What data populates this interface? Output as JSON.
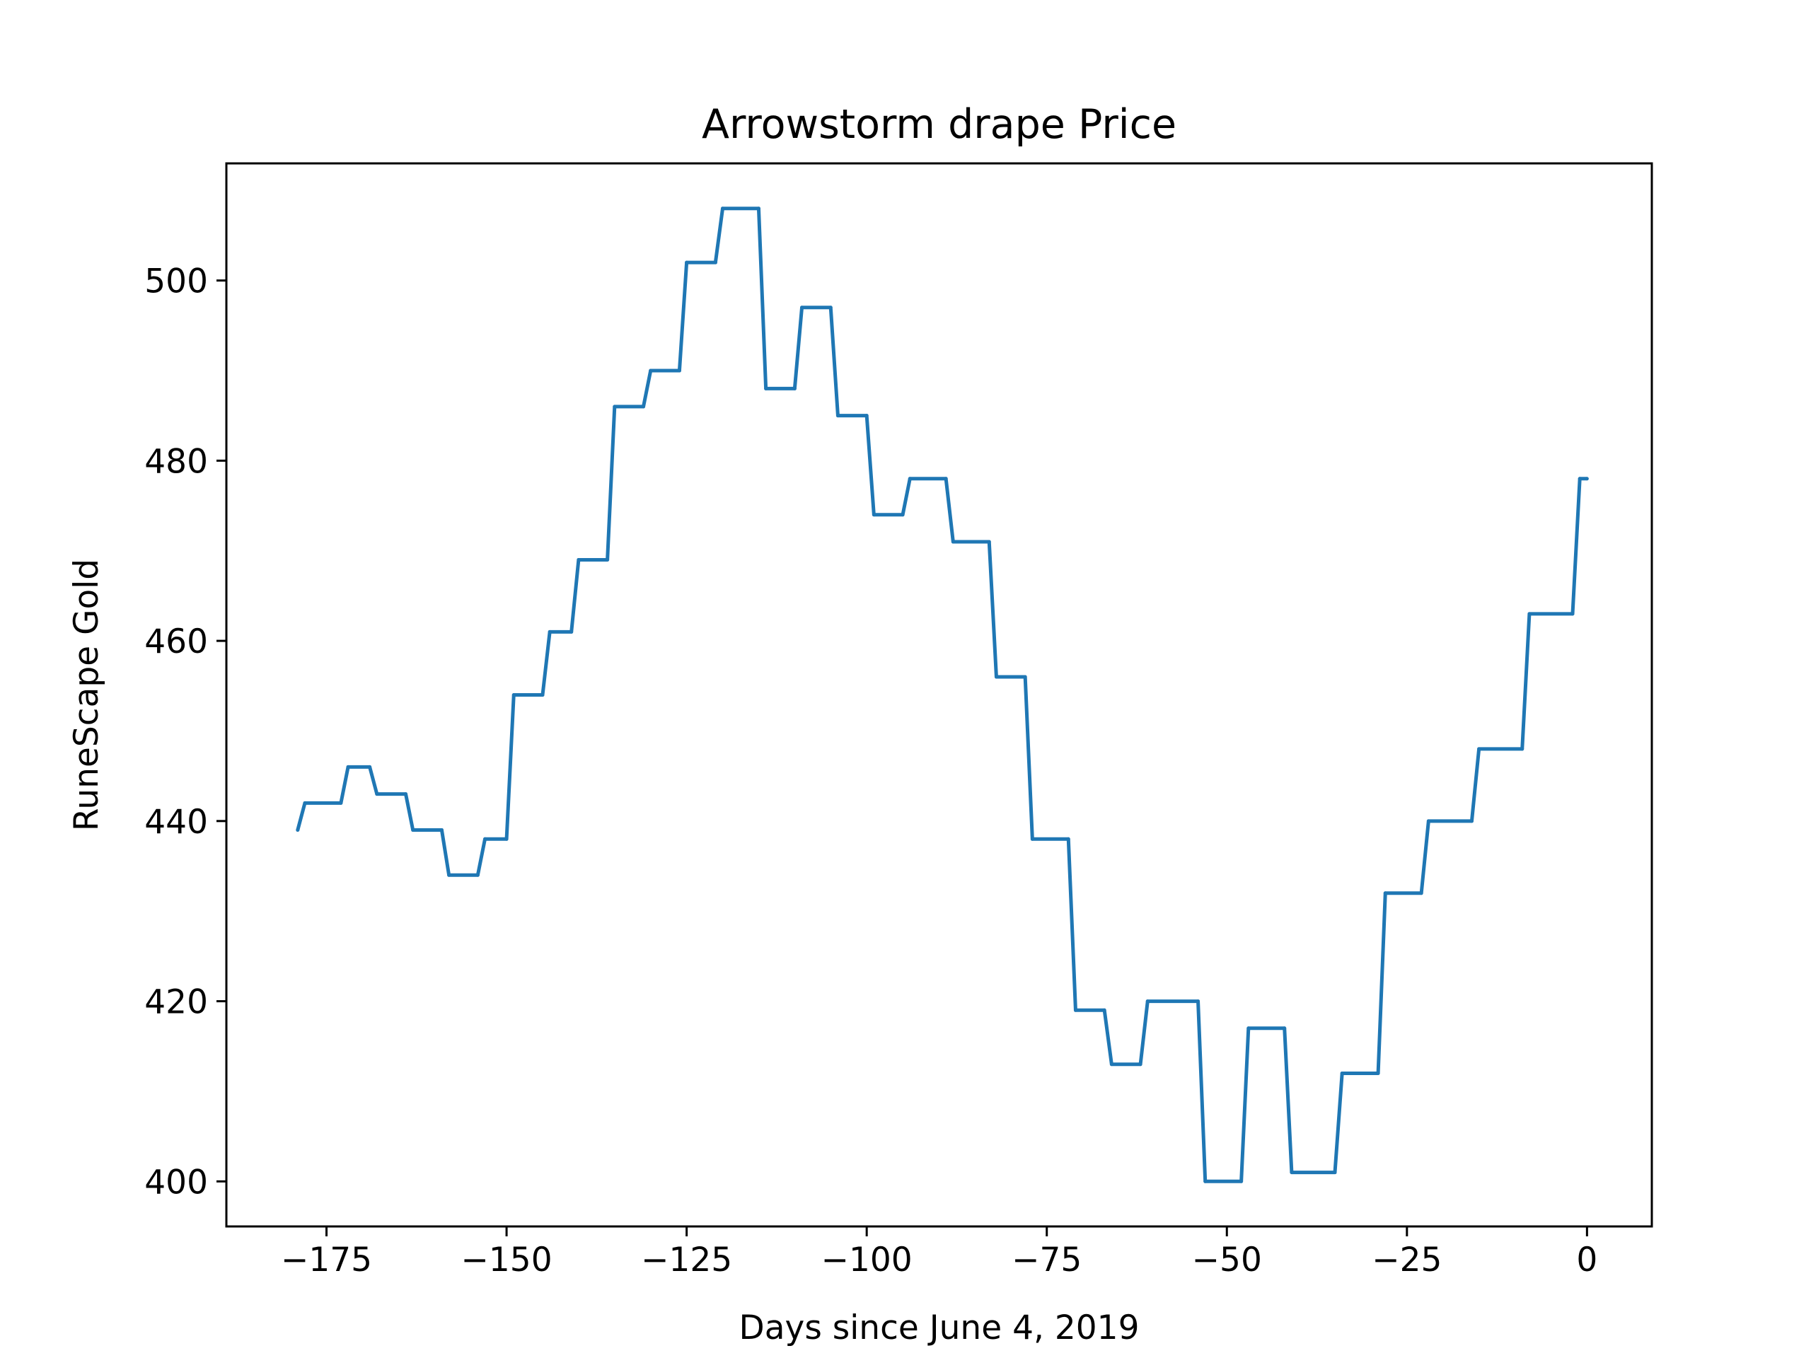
{
  "chart_data": {
    "type": "line",
    "title": "Arrowstorm drape Price",
    "xlabel": "Days since June 4, 2019",
    "ylabel": "RuneScape Gold",
    "xlim": [
      -188.9,
      9
    ],
    "ylim": [
      395,
      513
    ],
    "x_ticks": [
      -175,
      -150,
      -125,
      -100,
      -75,
      -50,
      -25,
      0
    ],
    "x_tick_labels": [
      "−175",
      "−150",
      "−125",
      "−100",
      "−75",
      "−50",
      "−25",
      "0"
    ],
    "y_ticks": [
      400,
      420,
      440,
      460,
      480,
      500
    ],
    "y_tick_labels": [
      "400",
      "420",
      "440",
      "460",
      "480",
      "500"
    ],
    "grid": false,
    "series": [
      {
        "color": "#1f77b4",
        "x": [
          -179,
          -178,
          -173,
          -172,
          -169,
          -168,
          -164,
          -163,
          -159,
          -158,
          -154,
          -153,
          -150,
          -149,
          -145,
          -144,
          -141,
          -140,
          -136,
          -135,
          -131,
          -130,
          -126,
          -125,
          -121,
          -120,
          -115,
          -114,
          -110,
          -109,
          -105,
          -104,
          -100,
          -99,
          -95,
          -94,
          -89,
          -88,
          -83,
          -82,
          -78,
          -77,
          -72,
          -71,
          -67,
          -66,
          -62,
          -61,
          -54,
          -53,
          -48,
          -47,
          -42,
          -41,
          -35,
          -34,
          -29,
          -28,
          -23,
          -22,
          -16,
          -15,
          -9,
          -8,
          -2,
          -1,
          0
        ],
        "y": [
          439,
          442,
          442,
          446,
          446,
          443,
          443,
          439,
          439,
          434,
          434,
          438,
          438,
          454,
          454,
          461,
          461,
          469,
          469,
          486,
          486,
          490,
          490,
          502,
          502,
          508,
          508,
          488,
          488,
          497,
          497,
          485,
          485,
          474,
          474,
          478,
          478,
          471,
          471,
          456,
          456,
          438,
          438,
          419,
          419,
          413,
          413,
          420,
          420,
          400,
          400,
          417,
          417,
          401,
          401,
          412,
          412,
          432,
          432,
          440,
          440,
          448,
          448,
          463,
          463,
          478,
          478
        ]
      }
    ]
  }
}
